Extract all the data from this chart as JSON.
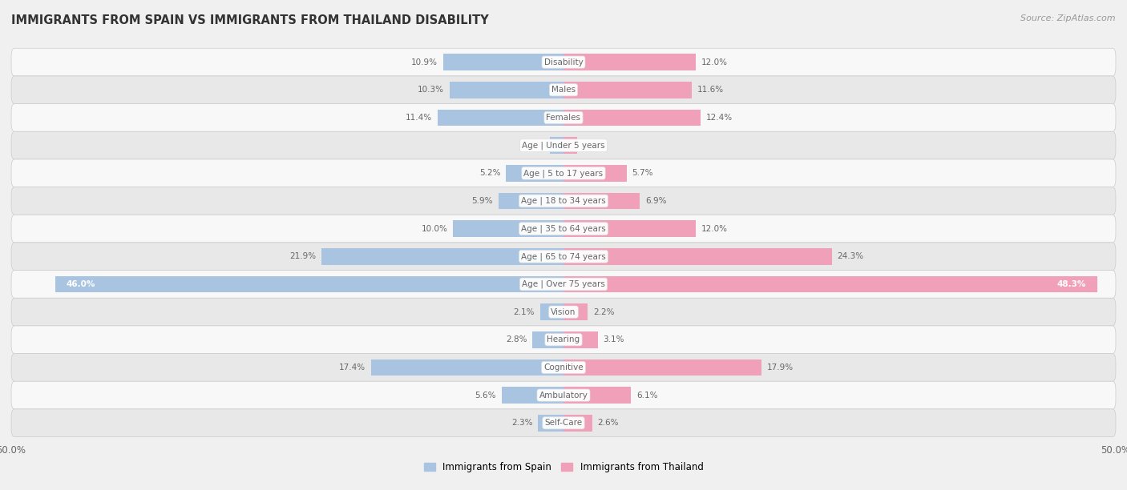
{
  "title": "IMMIGRANTS FROM SPAIN VS IMMIGRANTS FROM THAILAND DISABILITY",
  "source": "Source: ZipAtlas.com",
  "categories": [
    "Disability",
    "Males",
    "Females",
    "Age | Under 5 years",
    "Age | 5 to 17 years",
    "Age | 18 to 34 years",
    "Age | 35 to 64 years",
    "Age | 65 to 74 years",
    "Age | Over 75 years",
    "Vision",
    "Hearing",
    "Cognitive",
    "Ambulatory",
    "Self-Care"
  ],
  "spain_values": [
    10.9,
    10.3,
    11.4,
    1.2,
    5.2,
    5.9,
    10.0,
    21.9,
    46.0,
    2.1,
    2.8,
    17.4,
    5.6,
    2.3
  ],
  "thailand_values": [
    12.0,
    11.6,
    12.4,
    1.2,
    5.7,
    6.9,
    12.0,
    24.3,
    48.3,
    2.2,
    3.1,
    17.9,
    6.1,
    2.6
  ],
  "spain_color": "#a8c4e0",
  "thailand_color": "#f0a0b8",
  "spain_label": "Immigrants from Spain",
  "thailand_label": "Immigrants from Thailand",
  "max_value": 50.0,
  "bg_color": "#f0f0f0",
  "row_bg_light": "#f8f8f8",
  "row_bg_dark": "#e8e8e8",
  "label_color_outside": "#666666",
  "label_color_inside": "#ffffff",
  "category_text_color": "#666666",
  "title_color": "#333333",
  "source_color": "#999999"
}
